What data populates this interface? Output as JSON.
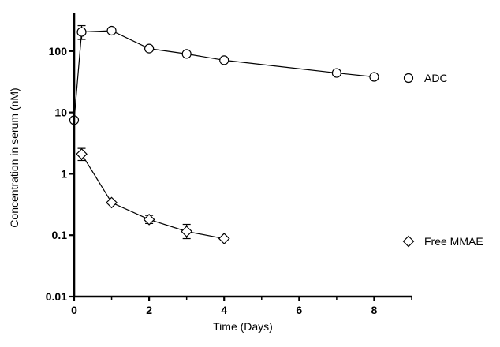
{
  "chart_data": {
    "type": "line",
    "xlabel": "Time (Days)",
    "ylabel": "Concentration in serum (nM)",
    "xlim": [
      0,
      9
    ],
    "ylim": [
      0.01,
      400
    ],
    "yscale": "log",
    "x_ticks": [
      0,
      2,
      4,
      6,
      8
    ],
    "x_tick_labels": [
      "0",
      "2",
      "4",
      "6",
      "8"
    ],
    "y_ticks": [
      0.01,
      0.1,
      1,
      10,
      100
    ],
    "y_tick_labels": [
      "0.01",
      "0.1",
      "1",
      "10",
      "100"
    ],
    "legend_position": "right",
    "series": [
      {
        "name": "ADC",
        "marker": "circle",
        "x": [
          0,
          0.2,
          1,
          2,
          3,
          4,
          7,
          8
        ],
        "y": [
          7.5,
          205,
          215,
          110,
          90,
          71,
          44,
          38
        ],
        "err_low": [
          null,
          155,
          null,
          null,
          null,
          null,
          null,
          null
        ],
        "err_high": [
          null,
          260,
          null,
          null,
          null,
          null,
          null,
          null
        ]
      },
      {
        "name": "Free MMAE",
        "marker": "diamond",
        "x": [
          0.2,
          1,
          2,
          3,
          4
        ],
        "y": [
          2.1,
          0.34,
          0.18,
          0.115,
          0.088
        ],
        "err_low": [
          1.65,
          null,
          0.155,
          0.088,
          null
        ],
        "err_high": [
          2.6,
          null,
          0.21,
          0.15,
          null
        ]
      }
    ]
  }
}
